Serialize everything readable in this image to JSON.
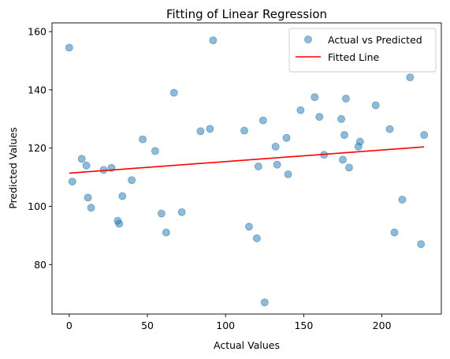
{
  "chart_data": {
    "type": "scatter",
    "title": "Fitting of Linear Regression",
    "xlabel": "Actual Values",
    "ylabel": "Predicted Values",
    "xlim": [
      -11,
      238
    ],
    "ylim": [
      63,
      163
    ],
    "xticks": [
      0,
      50,
      100,
      150,
      200
    ],
    "yticks": [
      80,
      100,
      120,
      140,
      160
    ],
    "grid": false,
    "legend_position": "top-right",
    "colors": {
      "scatter": "#1f77b4",
      "line": "#ff0000"
    },
    "series": [
      {
        "name": "Actual vs Predicted",
        "kind": "scatter",
        "points": [
          [
            0,
            154.5
          ],
          [
            2,
            108.5
          ],
          [
            8,
            116.3
          ],
          [
            11,
            114
          ],
          [
            12,
            103
          ],
          [
            14,
            99.5
          ],
          [
            22,
            112.5
          ],
          [
            27,
            113.2
          ],
          [
            31,
            95
          ],
          [
            32,
            94
          ],
          [
            34,
            103.5
          ],
          [
            40,
            109
          ],
          [
            47,
            123
          ],
          [
            55,
            119
          ],
          [
            59,
            97.5
          ],
          [
            62,
            91
          ],
          [
            67,
            139
          ],
          [
            72,
            98
          ],
          [
            84,
            125.8
          ],
          [
            90,
            126.6
          ],
          [
            92,
            157
          ],
          [
            112,
            126
          ],
          [
            115,
            93
          ],
          [
            120,
            89
          ],
          [
            121,
            113.7
          ],
          [
            124,
            129.5
          ],
          [
            125,
            67
          ],
          [
            132,
            120.5
          ],
          [
            133,
            114.3
          ],
          [
            139,
            123.5
          ],
          [
            140,
            111
          ],
          [
            148,
            133
          ],
          [
            157,
            137.5
          ],
          [
            160,
            130.7
          ],
          [
            163,
            117.7
          ],
          [
            174,
            130
          ],
          [
            175,
            116
          ],
          [
            176,
            124.5
          ],
          [
            177,
            137
          ],
          [
            179,
            113.3
          ],
          [
            185,
            120.5
          ],
          [
            186,
            122.2
          ],
          [
            196,
            134.7
          ],
          [
            205,
            126.5
          ],
          [
            208,
            91
          ],
          [
            213,
            102.3
          ],
          [
            218,
            144.3
          ],
          [
            225,
            87
          ],
          [
            227,
            124.5
          ]
        ]
      },
      {
        "name": "Fitted Line",
        "kind": "line",
        "points": [
          [
            0,
            111.4
          ],
          [
            227,
            120.4
          ]
        ]
      }
    ]
  }
}
